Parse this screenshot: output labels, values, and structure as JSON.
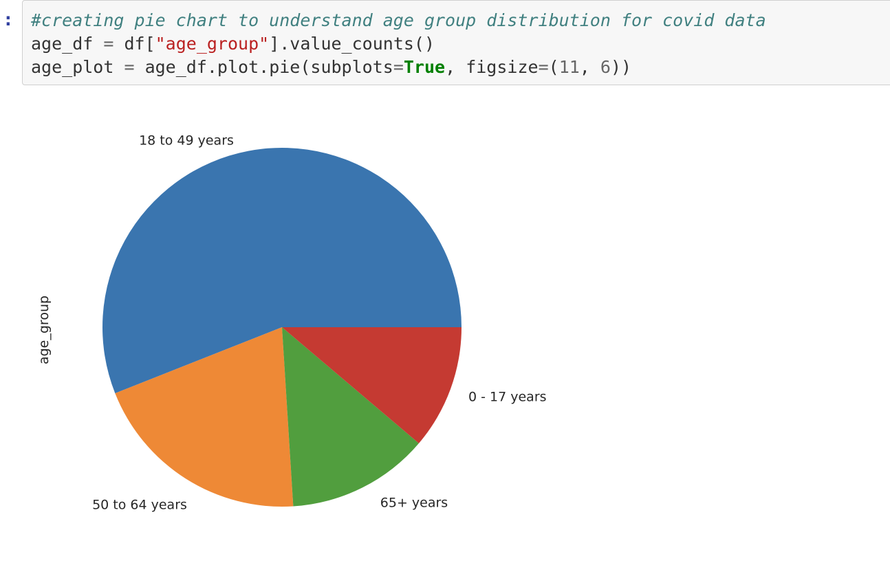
{
  "prompt": ":",
  "code": {
    "line1_comment": "#creating pie chart to understand age group distribution for covid data",
    "line2": {
      "var": "age_df",
      "eq": " = ",
      "obj": "df[",
      "string": "\"age_group\"",
      "rest": "].value_counts()"
    },
    "line3": {
      "var": "age_plot",
      "eq": " = ",
      "call": "age_df.plot.pie(subplots",
      "eq2": "=",
      "keyword": "True",
      "sep": ", figsize",
      "eq3": "=",
      "paren": "(",
      "num1": "11",
      "comma": ", ",
      "num2": "6",
      "close": "))"
    }
  },
  "chart_data": {
    "type": "pie",
    "ylabel": "age_group",
    "categories": [
      "18 to 49 years",
      "50 to 64 years",
      "65+ years",
      "0 - 17 years"
    ],
    "values": [
      56.0,
      20.0,
      12.8,
      11.2
    ],
    "colors": [
      "#3A75AF",
      "#EE8936",
      "#519E3E",
      "#C53A32"
    ],
    "start_angle_deg": 0,
    "direction": "counterclockwise",
    "labels": [
      {
        "text": "18 to 49 years"
      },
      {
        "text": "50 to 64 years"
      },
      {
        "text": "65+ years"
      },
      {
        "text": "0 - 17 years"
      }
    ]
  }
}
